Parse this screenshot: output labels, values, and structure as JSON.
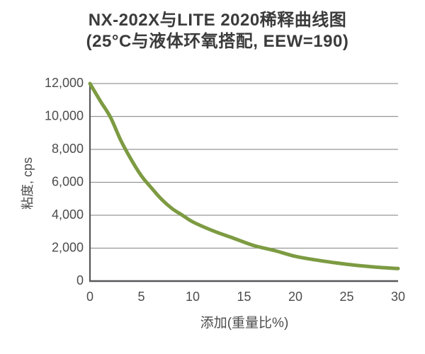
{
  "header": {
    "title": "NX-202X与LITE 2020稀释曲线图",
    "subtitle": "(25°C与液体环氧搭配, EEW=190)"
  },
  "chart_data": {
    "type": "line",
    "title": "NX-202X与LITE 2020稀释曲线图",
    "subtitle": "(25°C与液体环氧搭配, EEW=190)",
    "xlabel": "添加(重量比%)",
    "ylabel": "粘度, cps",
    "xlim": [
      0,
      30
    ],
    "ylim": [
      0,
      12000
    ],
    "x_ticks": [
      0,
      5,
      10,
      15,
      20,
      25,
      30
    ],
    "x_tick_labels": [
      "0",
      "5",
      "10",
      "15",
      "20",
      "25",
      "30"
    ],
    "y_ticks": [
      0,
      2000,
      4000,
      6000,
      8000,
      10000,
      12000
    ],
    "y_tick_labels": [
      "0",
      "2,000",
      "4,000",
      "6,000",
      "8,000",
      "10,000",
      "12,000"
    ],
    "grid": "horizontal",
    "legend": "none",
    "series": [
      {
        "name": "NX-202X",
        "color": "#7d9b42",
        "x": [
          0,
          1,
          2,
          3,
          4,
          5,
          6,
          7,
          8,
          9,
          10,
          12,
          14,
          16,
          18,
          20,
          22,
          24,
          26,
          28,
          30
        ],
        "y": [
          12000,
          10950,
          9950,
          8550,
          7400,
          6400,
          5650,
          4950,
          4400,
          4000,
          3600,
          3050,
          2600,
          2150,
          1850,
          1500,
          1280,
          1100,
          950,
          840,
          760
        ]
      }
    ]
  },
  "style": {
    "curve_color": "#7d9b42",
    "curve_width": 5,
    "grid_color": "#969696",
    "axis_color": "#58585a",
    "tick_text_color": "#4c4c4c",
    "title_color": "#3b3b3b",
    "background": "#ffffff"
  }
}
